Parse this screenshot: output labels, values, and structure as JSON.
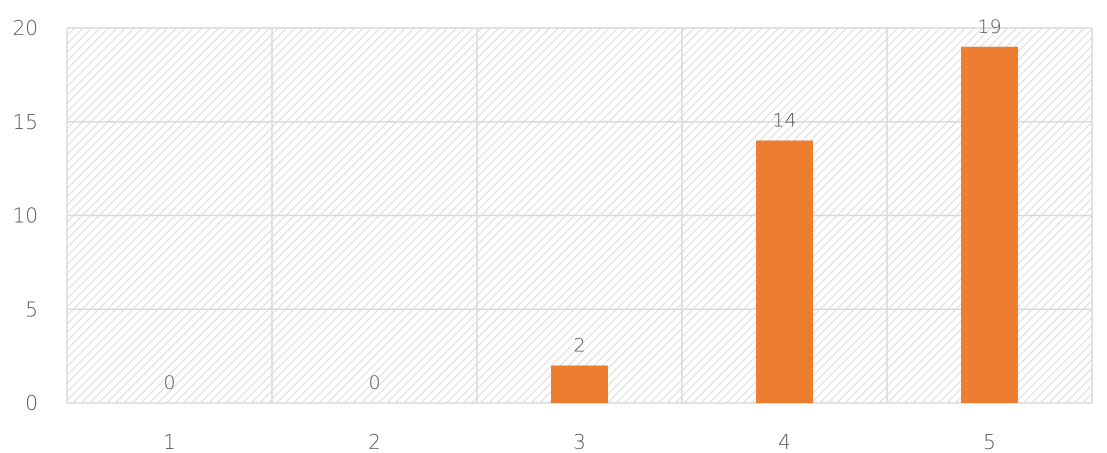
{
  "chart_data": {
    "type": "bar",
    "categories": [
      "1",
      "2",
      "3",
      "4",
      "5"
    ],
    "values": [
      0,
      0,
      2,
      14,
      19
    ],
    "ylim": [
      0,
      20
    ],
    "yticks": [
      0,
      5,
      10,
      15,
      20
    ],
    "title": "",
    "xlabel": "",
    "ylabel": "",
    "grid": true,
    "legend": "none",
    "data_labels": true,
    "colors": {
      "bar": "#ED7D31",
      "grid": "#D9D9D9",
      "hatch": "#D9D9D9",
      "text": "#595959"
    }
  }
}
